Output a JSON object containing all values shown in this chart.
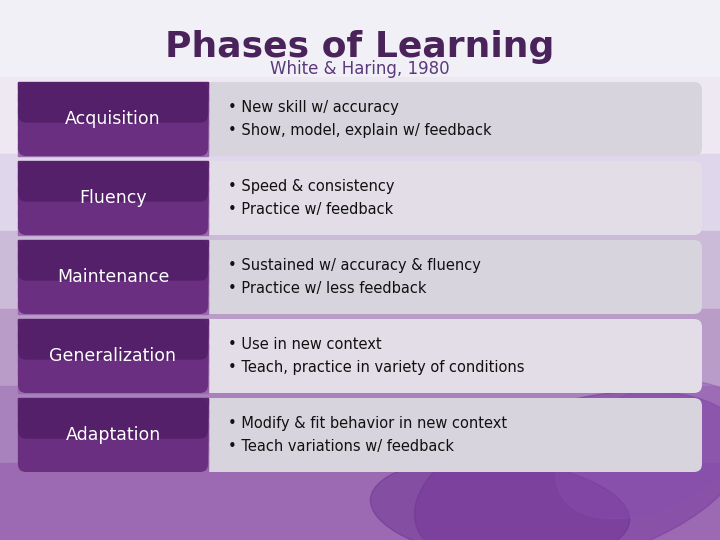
{
  "title": "Phases of Learning",
  "subtitle": "White & Haring, 1980",
  "title_color": "#4a235a",
  "subtitle_color": "#5a3a7a",
  "rows": [
    {
      "label": "Acquisition",
      "bullets": [
        "New skill w/ accuracy",
        "Show, model, explain w/ feedback"
      ],
      "row_bg": "#d8d4dd"
    },
    {
      "label": "Fluency",
      "bullets": [
        "Speed & consistency",
        "Practice w/ feedback"
      ],
      "row_bg": "#e2dde6"
    },
    {
      "label": "Maintenance",
      "bullets": [
        "Sustained w/ accuracy & fluency",
        "Practice w/ less feedback"
      ],
      "row_bg": "#d8d4dd"
    },
    {
      "label": "Generalization",
      "bullets": [
        "Use in new context",
        "Teach, practice in variety of conditions"
      ],
      "row_bg": "#e2dde6"
    },
    {
      "label": "Adaptation",
      "bullets": [
        "Modify & fit behavior in new context",
        "Teach variations w/ feedback"
      ],
      "row_bg": "#d8d4dd"
    }
  ],
  "label_color_top": "#5c1f6e",
  "label_color_bottom": "#9b6aad",
  "label_text_color": "#ffffff",
  "bullet_text_color": "#111111",
  "bg_colors": [
    "#f2f0f7",
    "#ede8f2",
    "#e0d6eb",
    "#cbbad8",
    "#b99dc8",
    "#a882bc",
    "#9b6ab2"
  ],
  "figsize": [
    7.2,
    5.4
  ],
  "dpi": 100
}
